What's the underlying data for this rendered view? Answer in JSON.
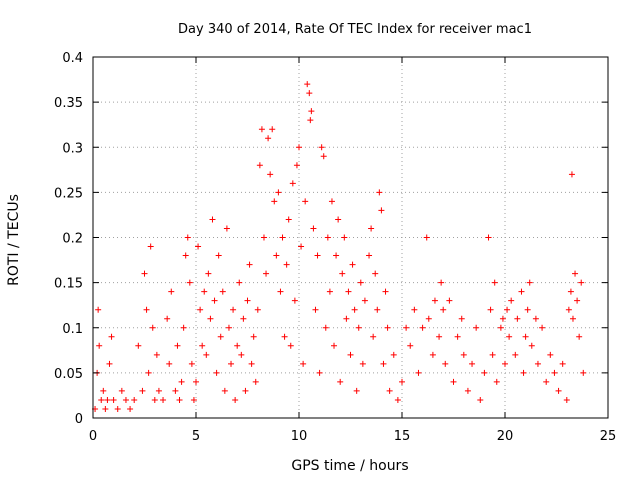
{
  "chart_data": {
    "type": "scatter",
    "title": "Day 340 of 2014, Rate Of TEC Index for receiver mac1",
    "xlabel": "GPS time / hours",
    "ylabel": "ROTI / TECUs",
    "xlim": [
      0,
      25
    ],
    "ylim": [
      0,
      0.4
    ],
    "xticks": [
      0,
      5,
      10,
      15,
      20,
      25
    ],
    "xtick_labels": [
      "0",
      "5",
      "10",
      "15",
      "20",
      "25"
    ],
    "yticks": [
      0,
      0.05,
      0.1,
      0.15,
      0.2,
      0.25,
      0.3,
      0.35,
      0.4
    ],
    "ytick_labels": [
      "0",
      "0.05",
      "0.1",
      "0.15",
      "0.2",
      "0.25",
      "0.3",
      "0.35",
      "0.4"
    ],
    "grid": true,
    "marker": "plus",
    "color": "#ff0000",
    "series": [
      {
        "name": "ROTI",
        "points": [
          [
            0.1,
            0.01
          ],
          [
            0.2,
            0.05
          ],
          [
            0.25,
            0.12
          ],
          [
            0.3,
            0.08
          ],
          [
            0.4,
            0.02
          ],
          [
            0.5,
            0.03
          ],
          [
            0.6,
            0.01
          ],
          [
            0.7,
            0.02
          ],
          [
            0.8,
            0.06
          ],
          [
            0.9,
            0.09
          ],
          [
            1.0,
            0.02
          ],
          [
            1.2,
            0.01
          ],
          [
            1.4,
            0.03
          ],
          [
            1.6,
            0.02
          ],
          [
            1.8,
            0.01
          ],
          [
            2.0,
            0.02
          ],
          [
            2.2,
            0.08
          ],
          [
            2.4,
            0.03
          ],
          [
            2.5,
            0.16
          ],
          [
            2.6,
            0.12
          ],
          [
            2.7,
            0.05
          ],
          [
            2.8,
            0.19
          ],
          [
            2.9,
            0.1
          ],
          [
            3.0,
            0.02
          ],
          [
            3.1,
            0.07
          ],
          [
            3.2,
            0.03
          ],
          [
            3.4,
            0.02
          ],
          [
            3.6,
            0.11
          ],
          [
            3.7,
            0.06
          ],
          [
            3.8,
            0.14
          ],
          [
            4.0,
            0.03
          ],
          [
            4.1,
            0.08
          ],
          [
            4.2,
            0.02
          ],
          [
            4.3,
            0.04
          ],
          [
            4.4,
            0.1
          ],
          [
            4.5,
            0.18
          ],
          [
            4.6,
            0.2
          ],
          [
            4.7,
            0.15
          ],
          [
            4.8,
            0.06
          ],
          [
            4.9,
            0.02
          ],
          [
            5.0,
            0.04
          ],
          [
            5.1,
            0.19
          ],
          [
            5.2,
            0.12
          ],
          [
            5.3,
            0.08
          ],
          [
            5.4,
            0.14
          ],
          [
            5.5,
            0.07
          ],
          [
            5.6,
            0.16
          ],
          [
            5.7,
            0.11
          ],
          [
            5.8,
            0.22
          ],
          [
            5.9,
            0.13
          ],
          [
            6.0,
            0.05
          ],
          [
            6.1,
            0.18
          ],
          [
            6.2,
            0.09
          ],
          [
            6.3,
            0.14
          ],
          [
            6.4,
            0.03
          ],
          [
            6.5,
            0.21
          ],
          [
            6.6,
            0.1
          ],
          [
            6.7,
            0.06
          ],
          [
            6.8,
            0.12
          ],
          [
            6.9,
            0.02
          ],
          [
            7.0,
            0.08
          ],
          [
            7.1,
            0.15
          ],
          [
            7.2,
            0.07
          ],
          [
            7.3,
            0.11
          ],
          [
            7.4,
            0.03
          ],
          [
            7.5,
            0.13
          ],
          [
            7.6,
            0.17
          ],
          [
            7.7,
            0.06
          ],
          [
            7.8,
            0.09
          ],
          [
            7.9,
            0.04
          ],
          [
            8.0,
            0.12
          ],
          [
            8.1,
            0.28
          ],
          [
            8.2,
            0.32
          ],
          [
            8.3,
            0.2
          ],
          [
            8.4,
            0.16
          ],
          [
            8.5,
            0.31
          ],
          [
            8.6,
            0.27
          ],
          [
            8.7,
            0.32
          ],
          [
            8.8,
            0.24
          ],
          [
            8.9,
            0.18
          ],
          [
            9.0,
            0.25
          ],
          [
            9.1,
            0.14
          ],
          [
            9.2,
            0.2
          ],
          [
            9.3,
            0.09
          ],
          [
            9.4,
            0.17
          ],
          [
            9.5,
            0.22
          ],
          [
            9.6,
            0.08
          ],
          [
            9.7,
            0.26
          ],
          [
            9.8,
            0.13
          ],
          [
            9.9,
            0.28
          ],
          [
            10.0,
            0.3
          ],
          [
            10.1,
            0.19
          ],
          [
            10.2,
            0.06
          ],
          [
            10.3,
            0.24
          ],
          [
            10.4,
            0.37
          ],
          [
            10.5,
            0.36
          ],
          [
            10.55,
            0.33
          ],
          [
            10.6,
            0.34
          ],
          [
            10.7,
            0.21
          ],
          [
            10.8,
            0.12
          ],
          [
            10.9,
            0.18
          ],
          [
            11.0,
            0.05
          ],
          [
            11.1,
            0.3
          ],
          [
            11.2,
            0.29
          ],
          [
            11.3,
            0.1
          ],
          [
            11.4,
            0.2
          ],
          [
            11.5,
            0.14
          ],
          [
            11.6,
            0.24
          ],
          [
            11.7,
            0.08
          ],
          [
            11.8,
            0.18
          ],
          [
            11.9,
            0.22
          ],
          [
            12.0,
            0.04
          ],
          [
            12.1,
            0.16
          ],
          [
            12.2,
            0.2
          ],
          [
            12.3,
            0.11
          ],
          [
            12.4,
            0.14
          ],
          [
            12.5,
            0.07
          ],
          [
            12.6,
            0.17
          ],
          [
            12.7,
            0.12
          ],
          [
            12.8,
            0.03
          ],
          [
            12.9,
            0.1
          ],
          [
            13.0,
            0.15
          ],
          [
            13.1,
            0.06
          ],
          [
            13.2,
            0.13
          ],
          [
            13.4,
            0.18
          ],
          [
            13.5,
            0.21
          ],
          [
            13.6,
            0.09
          ],
          [
            13.7,
            0.16
          ],
          [
            13.8,
            0.12
          ],
          [
            13.9,
            0.25
          ],
          [
            14.0,
            0.23
          ],
          [
            14.1,
            0.06
          ],
          [
            14.2,
            0.14
          ],
          [
            14.3,
            0.1
          ],
          [
            14.4,
            0.03
          ],
          [
            14.6,
            0.07
          ],
          [
            14.8,
            0.02
          ],
          [
            15.0,
            0.04
          ],
          [
            15.2,
            0.1
          ],
          [
            15.4,
            0.08
          ],
          [
            15.6,
            0.12
          ],
          [
            15.8,
            0.05
          ],
          [
            16.0,
            0.1
          ],
          [
            16.2,
            0.2
          ],
          [
            16.3,
            0.11
          ],
          [
            16.5,
            0.07
          ],
          [
            16.6,
            0.13
          ],
          [
            16.8,
            0.09
          ],
          [
            16.9,
            0.15
          ],
          [
            17.0,
            0.12
          ],
          [
            17.1,
            0.06
          ],
          [
            17.3,
            0.13
          ],
          [
            17.5,
            0.04
          ],
          [
            17.7,
            0.09
          ],
          [
            17.9,
            0.11
          ],
          [
            18.0,
            0.07
          ],
          [
            18.2,
            0.03
          ],
          [
            18.4,
            0.06
          ],
          [
            18.6,
            0.1
          ],
          [
            18.8,
            0.02
          ],
          [
            19.0,
            0.05
          ],
          [
            19.2,
            0.2
          ],
          [
            19.3,
            0.12
          ],
          [
            19.4,
            0.07
          ],
          [
            19.5,
            0.15
          ],
          [
            19.6,
            0.04
          ],
          [
            19.8,
            0.1
          ],
          [
            19.9,
            0.11
          ],
          [
            20.0,
            0.06
          ],
          [
            20.1,
            0.12
          ],
          [
            20.2,
            0.09
          ],
          [
            20.3,
            0.13
          ],
          [
            20.5,
            0.07
          ],
          [
            20.6,
            0.11
          ],
          [
            20.8,
            0.14
          ],
          [
            20.9,
            0.05
          ],
          [
            21.0,
            0.09
          ],
          [
            21.1,
            0.12
          ],
          [
            21.2,
            0.15
          ],
          [
            21.3,
            0.08
          ],
          [
            21.5,
            0.11
          ],
          [
            21.6,
            0.06
          ],
          [
            21.8,
            0.1
          ],
          [
            22.0,
            0.04
          ],
          [
            22.2,
            0.07
          ],
          [
            22.4,
            0.05
          ],
          [
            22.6,
            0.03
          ],
          [
            22.8,
            0.06
          ],
          [
            23.0,
            0.02
          ],
          [
            23.1,
            0.12
          ],
          [
            23.2,
            0.14
          ],
          [
            23.25,
            0.27
          ],
          [
            23.3,
            0.11
          ],
          [
            23.4,
            0.16
          ],
          [
            23.5,
            0.13
          ],
          [
            23.6,
            0.09
          ],
          [
            23.7,
            0.15
          ],
          [
            23.8,
            0.05
          ]
        ]
      }
    ]
  }
}
